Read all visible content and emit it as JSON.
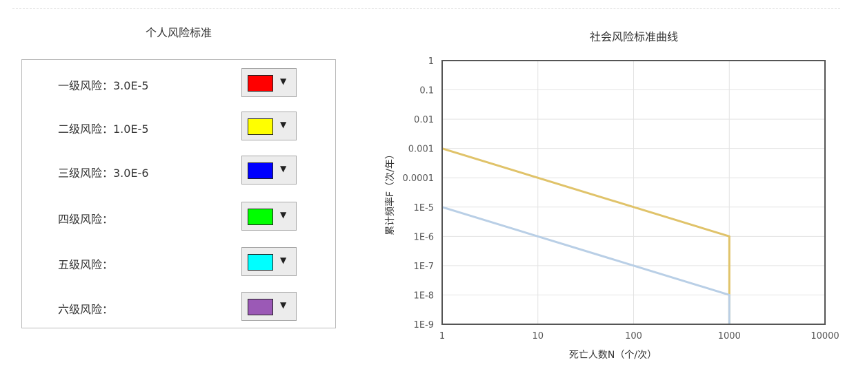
{
  "left_panel": {
    "title": "个人风险标准",
    "rows": [
      {
        "label": "一级风险：3.0E-5",
        "color": "#ff0000"
      },
      {
        "label": "二级风险：1.0E-5",
        "color": "#ffff00"
      },
      {
        "label": "三级风险：3.0E-6",
        "color": "#0000ff"
      },
      {
        "label": "四级风险：",
        "color": "#00ff00"
      },
      {
        "label": "五级风险：",
        "color": "#00ffff"
      },
      {
        "label": "六级风险：",
        "color": "#9b59b6"
      }
    ],
    "dropdown_icon": "▼"
  },
  "chart_data": {
    "type": "line",
    "title": "社会风险标准曲线",
    "xlabel": "死亡人数N（个/次）",
    "ylabel": "累计频率F（次/年）",
    "x_scale": "log",
    "y_scale": "log",
    "xlim": [
      1,
      10000
    ],
    "ylim": [
      1e-09,
      1
    ],
    "x_ticks": [
      {
        "value": 1,
        "label": "1"
      },
      {
        "value": 10,
        "label": "10"
      },
      {
        "value": 100,
        "label": "100"
      },
      {
        "value": 1000,
        "label": "1000"
      },
      {
        "value": 10000,
        "label": "10000"
      }
    ],
    "y_ticks": [
      {
        "value": 1,
        "label": "1"
      },
      {
        "value": 0.1,
        "label": "0.1"
      },
      {
        "value": 0.01,
        "label": "0.01"
      },
      {
        "value": 0.001,
        "label": "0.001"
      },
      {
        "value": 0.0001,
        "label": "0.0001"
      },
      {
        "value": 1e-05,
        "label": "1E-5"
      },
      {
        "value": 1e-06,
        "label": "1E-6"
      },
      {
        "value": 1e-07,
        "label": "1E-7"
      },
      {
        "value": 1e-08,
        "label": "1E-8"
      },
      {
        "value": 1e-09,
        "label": "1E-9"
      }
    ],
    "grid": true,
    "series": [
      {
        "color": "#e0c36a",
        "points": [
          [
            1,
            0.001
          ],
          [
            1000,
            1e-06
          ],
          [
            1000,
            1e-09
          ]
        ]
      },
      {
        "color": "#b9cfe6",
        "points": [
          [
            1,
            1e-05
          ],
          [
            1000,
            1e-08
          ],
          [
            1000,
            1e-09
          ]
        ]
      }
    ]
  }
}
